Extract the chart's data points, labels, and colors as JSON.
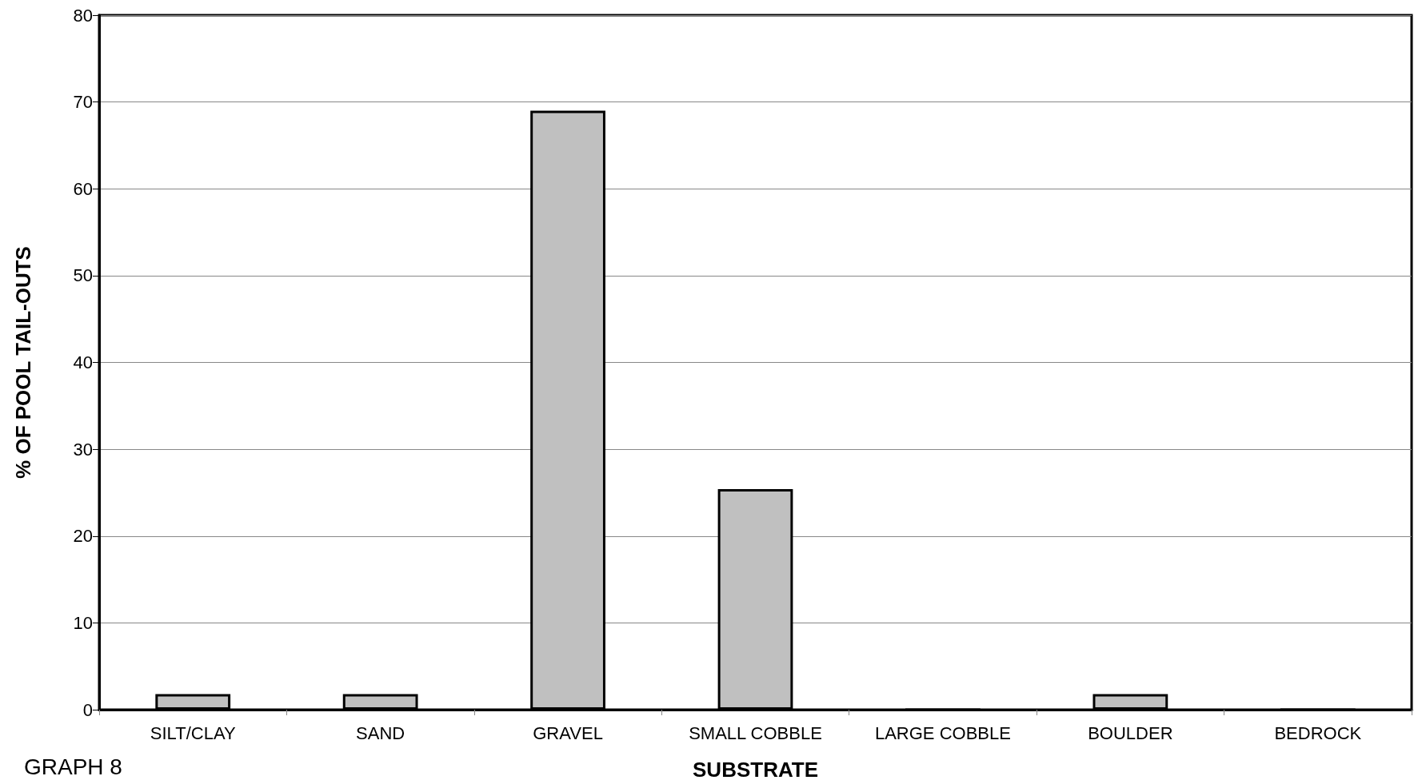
{
  "chart_data": {
    "type": "bar",
    "xlabel": "SUBSTRATE",
    "ylabel": "% OF POOL TAIL-OUTS",
    "categories": [
      "SILT/CLAY",
      "SAND",
      "GRAVEL",
      "SMALL COBBLE",
      "LARGE COBBLE",
      "BOULDER",
      "BEDROCK"
    ],
    "values": [
      1.8,
      1.8,
      69,
      25.4,
      0,
      1.8,
      0
    ],
    "color": "#c0c0c0",
    "ylim": [
      0,
      80
    ],
    "yticks": [
      0,
      10,
      20,
      30,
      40,
      50,
      60,
      70,
      80
    ],
    "grid": "y",
    "annotations": [
      "GRAPH 8"
    ]
  }
}
